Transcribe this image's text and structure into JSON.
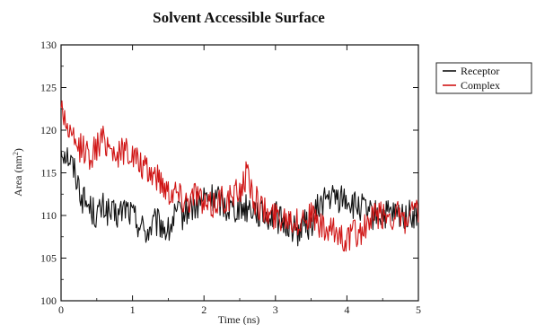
{
  "chart_data": {
    "type": "line",
    "title": "Solvent Accessible Surface",
    "xlabel": "Time (ns)",
    "ylabel": "Area (nm²)",
    "ylabel_parts": {
      "main": "Area (nm",
      "sup": "2",
      "close": ")"
    },
    "xlim": [
      0,
      5
    ],
    "ylim": [
      100,
      130
    ],
    "x_ticks": [
      "0",
      "1",
      "2",
      "3",
      "4",
      "5"
    ],
    "y_ticks": [
      "100",
      "105",
      "110",
      "115",
      "120",
      "125",
      "130"
    ],
    "grid": false,
    "legend_position": "right",
    "series": [
      {
        "name": "Receptor",
        "color": "#111111",
        "x": [
          0,
          0.1,
          0.2,
          0.3,
          0.4,
          0.5,
          0.6,
          0.7,
          0.8,
          0.9,
          1.0,
          1.1,
          1.2,
          1.3,
          1.4,
          1.5,
          1.6,
          1.7,
          1.8,
          1.9,
          2.0,
          2.1,
          2.2,
          2.3,
          2.4,
          2.5,
          2.6,
          2.7,
          2.8,
          2.9,
          3.0,
          3.1,
          3.2,
          3.3,
          3.4,
          3.5,
          3.6,
          3.7,
          3.8,
          3.9,
          4.0,
          4.1,
          4.2,
          4.3,
          4.4,
          4.5,
          4.6,
          4.7,
          4.8,
          4.9,
          5.0
        ],
        "values": [
          118,
          117,
          115,
          112,
          111,
          110,
          111,
          110,
          110,
          111,
          110,
          109,
          108,
          109,
          109,
          108,
          110,
          110,
          111,
          111,
          112,
          112,
          112,
          111,
          111,
          111,
          111,
          111,
          110,
          110,
          110,
          109,
          109,
          108,
          109,
          109,
          111,
          112,
          112,
          112,
          112,
          111,
          111,
          110,
          110,
          110,
          110,
          110,
          110,
          110,
          110
        ]
      },
      {
        "name": "Complex",
        "color": "#d01515",
        "x": [
          0,
          0.1,
          0.2,
          0.3,
          0.4,
          0.5,
          0.6,
          0.7,
          0.8,
          0.9,
          1.0,
          1.1,
          1.2,
          1.3,
          1.4,
          1.5,
          1.6,
          1.7,
          1.8,
          1.9,
          2.0,
          2.1,
          2.2,
          2.3,
          2.4,
          2.5,
          2.6,
          2.7,
          2.8,
          2.9,
          3.0,
          3.1,
          3.2,
          3.3,
          3.4,
          3.5,
          3.6,
          3.7,
          3.8,
          3.9,
          4.0,
          4.1,
          4.2,
          4.3,
          4.4,
          4.5,
          4.6,
          4.7,
          4.8,
          4.9,
          5.0
        ],
        "values": [
          123,
          120,
          118,
          118,
          117,
          118,
          119,
          118,
          117,
          118,
          117,
          116,
          115,
          115,
          114,
          113,
          113,
          112,
          112,
          113,
          111,
          111,
          112,
          112,
          112,
          113,
          115,
          112,
          111,
          110,
          110,
          110,
          110,
          109,
          110,
          110,
          109,
          108,
          108,
          108,
          107,
          108,
          108,
          109,
          110,
          110,
          110,
          110,
          109,
          110,
          110
        ]
      }
    ]
  }
}
